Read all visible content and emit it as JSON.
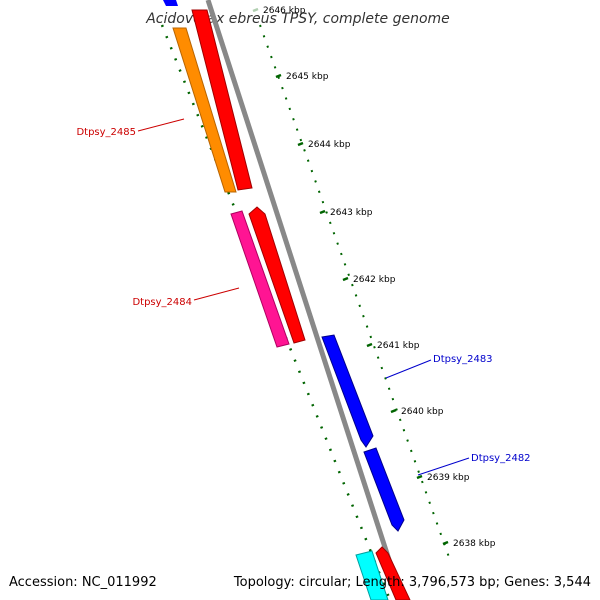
{
  "title": "Acidovorax ebreus TPSY, complete genome",
  "scale_ticks": [
    {
      "label": "2646 kbp",
      "faded": true
    },
    {
      "label": "2645 kbp"
    },
    {
      "label": "2644 kbp"
    },
    {
      "label": "2643 kbp"
    },
    {
      "label": "2642 kbp"
    },
    {
      "label": "2641 kbp"
    },
    {
      "label": "2640 kbp"
    },
    {
      "label": "2639 kbp"
    },
    {
      "label": "2638 kbp"
    }
  ],
  "genes": [
    {
      "name": "Dtpsy_2485",
      "strand": "reverse",
      "color": "#ff8c00"
    },
    {
      "name": "Dtpsy_2484",
      "strand": "reverse",
      "color": "#ff1493"
    },
    {
      "name": "Dtpsy_2483",
      "strand": "forward",
      "color": "#0000ff"
    },
    {
      "name": "Dtpsy_2482",
      "strand": "forward",
      "color": "#0000ff"
    }
  ],
  "colors": {
    "reverse_label": "#cc0000",
    "forward_label": "#0000cc",
    "cds_red": "#ff0000",
    "backbone": "#888888",
    "gc_dots": "#006400",
    "extra_cyan": "#00ffff"
  },
  "footer": {
    "accession": "Accession: NC_011992",
    "summary": "Topology: circular; Length: 3,796,573 bp; Genes: 3,544"
  }
}
